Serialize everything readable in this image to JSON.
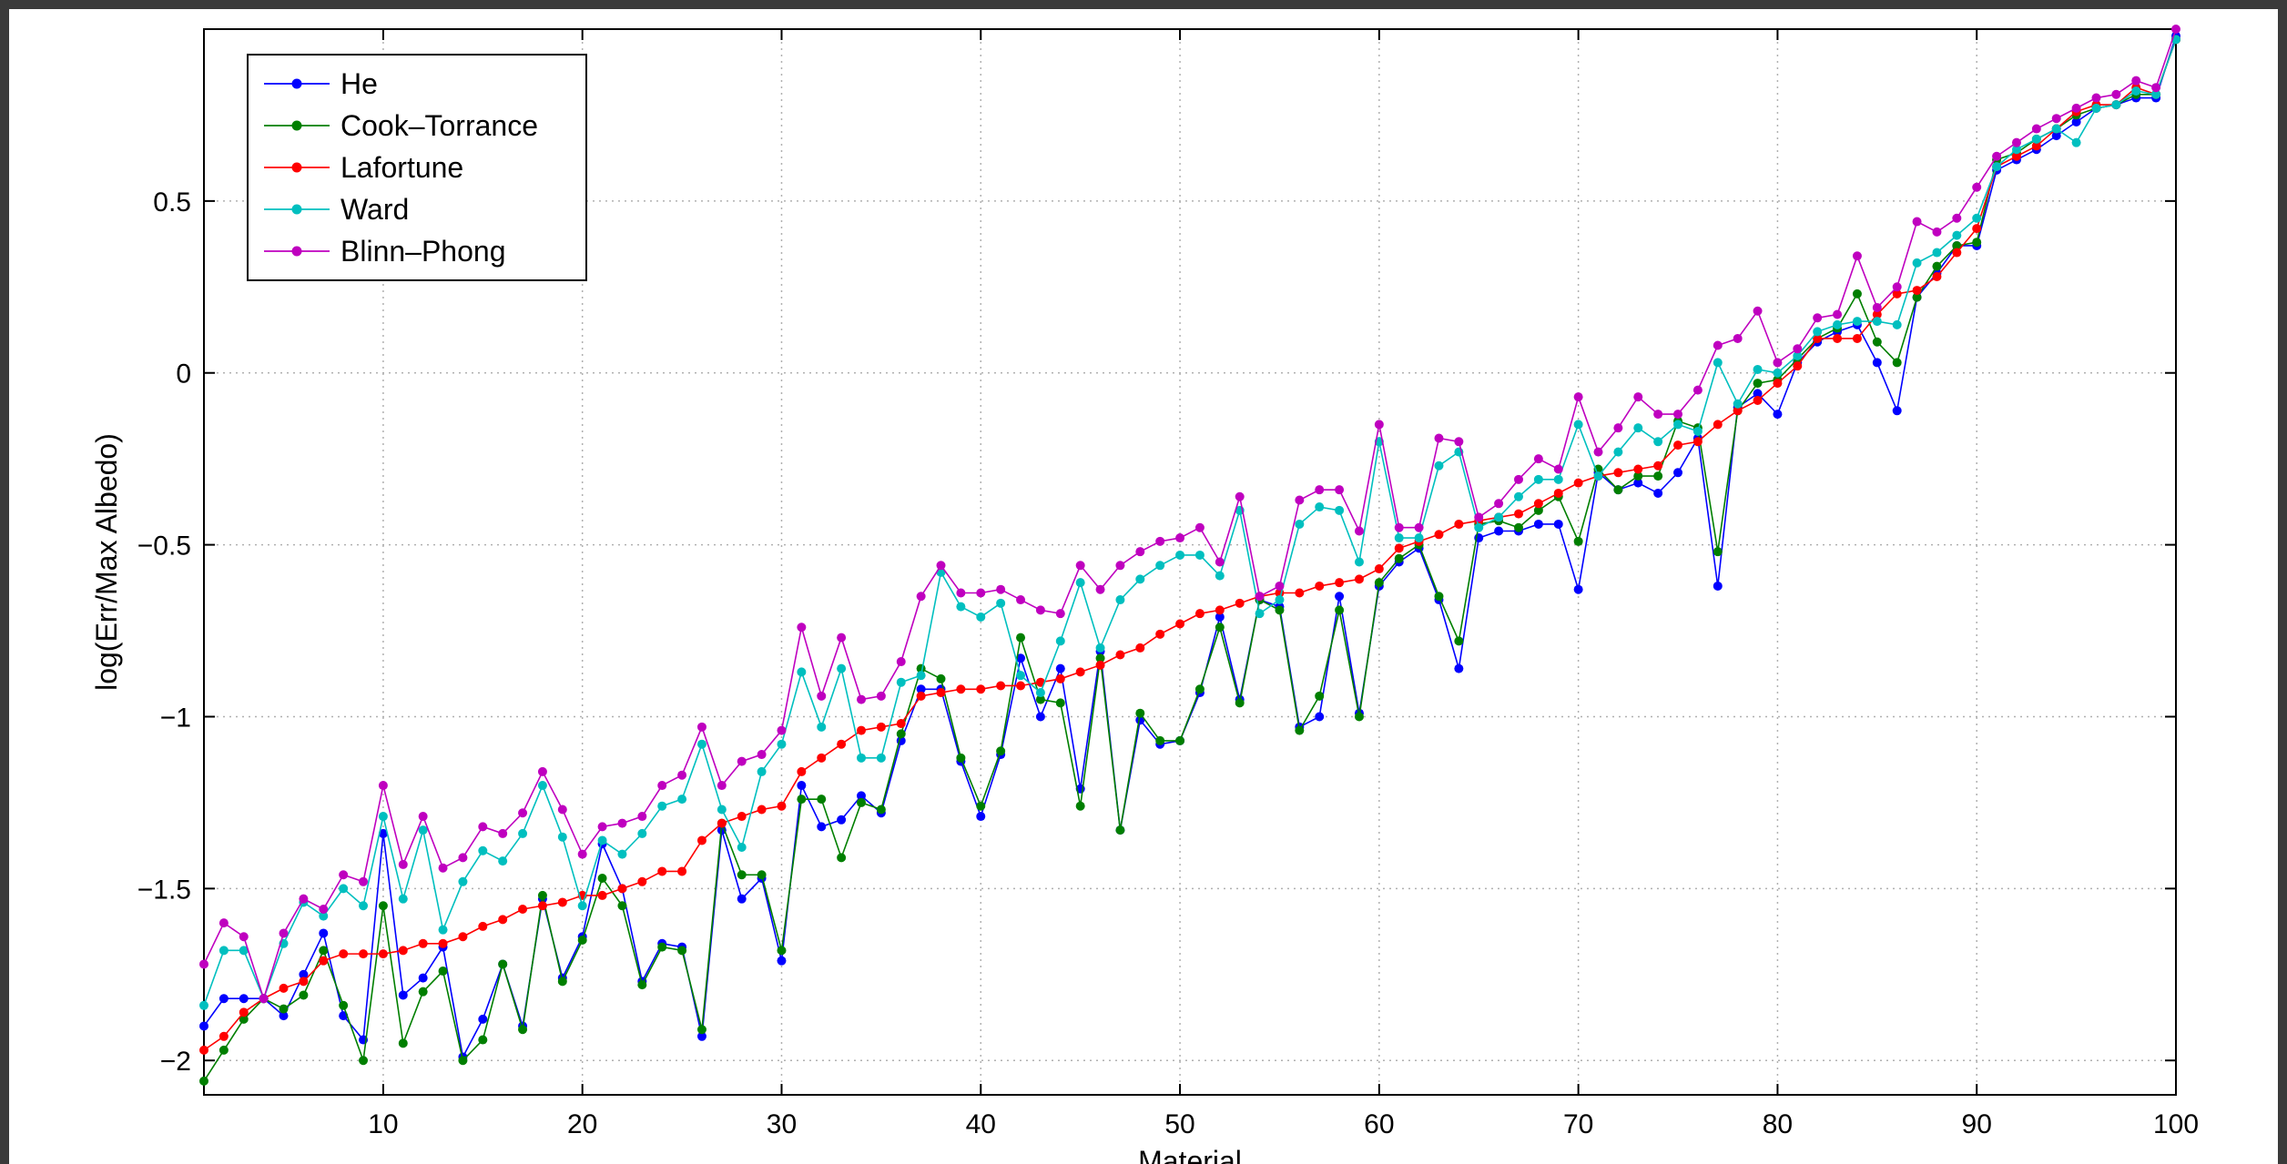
{
  "chart_data": {
    "type": "line",
    "title": "",
    "xlabel": "Material",
    "ylabel": "log(Err/Max Albedo)",
    "xlim": [
      1,
      100
    ],
    "ylim": [
      -2.1,
      1.0
    ],
    "xticks": [
      10,
      20,
      30,
      40,
      50,
      60,
      70,
      80,
      90,
      100
    ],
    "yticks": [
      -2,
      -1.5,
      -1,
      -0.5,
      0,
      0.5
    ],
    "ytick_labels": [
      "−2",
      "−1.5",
      "−1",
      "−0.5",
      "0",
      "0.5"
    ],
    "grid": true,
    "legend_position": "top-left",
    "x": [
      1,
      2,
      3,
      4,
      5,
      6,
      7,
      8,
      9,
      10,
      11,
      12,
      13,
      14,
      15,
      16,
      17,
      18,
      19,
      20,
      21,
      22,
      23,
      24,
      25,
      26,
      27,
      28,
      29,
      30,
      31,
      32,
      33,
      34,
      35,
      36,
      37,
      38,
      39,
      40,
      41,
      42,
      43,
      44,
      45,
      46,
      47,
      48,
      49,
      50,
      51,
      52,
      53,
      54,
      55,
      56,
      57,
      58,
      59,
      60,
      61,
      62,
      63,
      64,
      65,
      66,
      67,
      68,
      69,
      70,
      71,
      72,
      73,
      74,
      75,
      76,
      77,
      78,
      79,
      80,
      81,
      82,
      83,
      84,
      85,
      86,
      87,
      88,
      89,
      90,
      91,
      92,
      93,
      94,
      95,
      96,
      97,
      98,
      99,
      100
    ],
    "series": [
      {
        "name": "He",
        "color": "#0000ff",
        "values": [
          -1.9,
          -1.82,
          -1.82,
          -1.82,
          -1.87,
          -1.75,
          -1.63,
          -1.87,
          -1.94,
          -1.34,
          -1.81,
          -1.76,
          -1.67,
          -1.99,
          -1.88,
          -1.72,
          -1.9,
          -1.53,
          -1.76,
          -1.64,
          -1.37,
          -1.5,
          -1.77,
          -1.66,
          -1.67,
          -1.93,
          -1.33,
          -1.53,
          -1.47,
          -1.71,
          -1.2,
          -1.32,
          -1.3,
          -1.23,
          -1.28,
          -1.07,
          -0.92,
          -0.92,
          -1.13,
          -1.29,
          -1.11,
          -0.83,
          -1.0,
          -0.86,
          -1.21,
          -0.81,
          -1.33,
          -1.01,
          -1.08,
          -1.07,
          -0.93,
          -0.71,
          -0.95,
          -0.66,
          -0.68,
          -1.03,
          -1.0,
          -0.65,
          -0.99,
          -0.62,
          -0.55,
          -0.51,
          -0.66,
          -0.86,
          -0.48,
          -0.46,
          -0.46,
          -0.44,
          -0.44,
          -0.63,
          -0.29,
          -0.34,
          -0.32,
          -0.35,
          -0.29,
          -0.19,
          -0.62,
          -0.1,
          -0.06,
          -0.12,
          0.03,
          0.09,
          0.12,
          0.14,
          0.03,
          -0.11,
          0.22,
          0.29,
          0.37,
          0.37,
          0.59,
          0.62,
          0.65,
          0.69,
          0.73,
          0.77,
          0.78,
          0.8,
          0.8,
          0.98
        ]
      },
      {
        "name": "Cook–Torrance",
        "color": "#007f00",
        "values": [
          -2.06,
          -1.97,
          -1.88,
          -1.82,
          -1.85,
          -1.81,
          -1.68,
          -1.84,
          -2.0,
          -1.55,
          -1.95,
          -1.8,
          -1.74,
          -2.0,
          -1.94,
          -1.72,
          -1.91,
          -1.52,
          -1.77,
          -1.65,
          -1.47,
          -1.55,
          -1.78,
          -1.67,
          -1.68,
          -1.91,
          -1.31,
          -1.46,
          -1.46,
          -1.68,
          -1.24,
          -1.24,
          -1.41,
          -1.25,
          -1.27,
          -1.05,
          -0.86,
          -0.89,
          -1.12,
          -1.26,
          -1.1,
          -0.77,
          -0.95,
          -0.96,
          -1.26,
          -0.83,
          -1.33,
          -0.99,
          -1.07,
          -1.07,
          -0.92,
          -0.74,
          -0.96,
          -0.66,
          -0.69,
          -1.04,
          -0.94,
          -0.69,
          -1.0,
          -0.61,
          -0.54,
          -0.5,
          -0.65,
          -0.78,
          -0.44,
          -0.43,
          -0.45,
          -0.4,
          -0.36,
          -0.49,
          -0.28,
          -0.34,
          -0.3,
          -0.3,
          -0.14,
          -0.16,
          -0.52,
          -0.11,
          -0.03,
          -0.02,
          0.04,
          0.1,
          0.13,
          0.23,
          0.09,
          0.03,
          0.22,
          0.31,
          0.37,
          0.38,
          0.62,
          0.64,
          0.68,
          0.71,
          0.75,
          0.77,
          0.78,
          0.81,
          0.81,
          0.97
        ]
      },
      {
        "name": "Lafortune",
        "color": "#ff0000",
        "values": [
          -1.97,
          -1.93,
          -1.86,
          -1.82,
          -1.79,
          -1.77,
          -1.71,
          -1.69,
          -1.69,
          -1.69,
          -1.68,
          -1.66,
          -1.66,
          -1.64,
          -1.61,
          -1.59,
          -1.56,
          -1.55,
          -1.54,
          -1.52,
          -1.52,
          -1.5,
          -1.48,
          -1.45,
          -1.45,
          -1.36,
          -1.31,
          -1.29,
          -1.27,
          -1.26,
          -1.16,
          -1.12,
          -1.08,
          -1.04,
          -1.03,
          -1.02,
          -0.94,
          -0.93,
          -0.92,
          -0.92,
          -0.91,
          -0.91,
          -0.9,
          -0.89,
          -0.87,
          -0.85,
          -0.82,
          -0.8,
          -0.76,
          -0.73,
          -0.7,
          -0.69,
          -0.67,
          -0.65,
          -0.64,
          -0.64,
          -0.62,
          -0.61,
          -0.6,
          -0.57,
          -0.51,
          -0.49,
          -0.47,
          -0.44,
          -0.43,
          -0.42,
          -0.41,
          -0.38,
          -0.35,
          -0.32,
          -0.3,
          -0.29,
          -0.28,
          -0.27,
          -0.21,
          -0.2,
          -0.15,
          -0.11,
          -0.08,
          -0.03,
          0.02,
          0.1,
          0.1,
          0.1,
          0.17,
          0.23,
          0.24,
          0.28,
          0.35,
          0.42,
          0.6,
          0.63,
          0.66,
          0.71,
          0.76,
          0.78,
          0.78,
          0.83,
          0.81,
          0.97
        ]
      },
      {
        "name": "Ward",
        "color": "#00bfbf",
        "values": [
          -1.84,
          -1.68,
          -1.68,
          -1.82,
          -1.66,
          -1.54,
          -1.58,
          -1.5,
          -1.55,
          -1.29,
          -1.53,
          -1.33,
          -1.62,
          -1.48,
          -1.39,
          -1.42,
          -1.34,
          -1.2,
          -1.35,
          -1.55,
          -1.36,
          -1.4,
          -1.34,
          -1.26,
          -1.24,
          -1.08,
          -1.27,
          -1.38,
          -1.16,
          -1.08,
          -0.87,
          -1.03,
          -0.86,
          -1.12,
          -1.12,
          -0.9,
          -0.88,
          -0.58,
          -0.68,
          -0.71,
          -0.67,
          -0.88,
          -0.93,
          -0.78,
          -0.61,
          -0.8,
          -0.66,
          -0.6,
          -0.56,
          -0.53,
          -0.53,
          -0.59,
          -0.4,
          -0.7,
          -0.66,
          -0.44,
          -0.39,
          -0.4,
          -0.55,
          -0.2,
          -0.48,
          -0.48,
          -0.27,
          -0.23,
          -0.45,
          -0.42,
          -0.36,
          -0.31,
          -0.31,
          -0.15,
          -0.3,
          -0.23,
          -0.16,
          -0.2,
          -0.15,
          -0.17,
          0.03,
          -0.09,
          0.01,
          0.0,
          0.05,
          0.12,
          0.14,
          0.15,
          0.15,
          0.14,
          0.32,
          0.35,
          0.4,
          0.45,
          0.6,
          0.65,
          0.68,
          0.71,
          0.67,
          0.77,
          0.78,
          0.82,
          0.81,
          0.97
        ]
      },
      {
        "name": "Blinn–Phong",
        "color": "#bf00bf",
        "values": [
          -1.72,
          -1.6,
          -1.64,
          -1.82,
          -1.63,
          -1.53,
          -1.56,
          -1.46,
          -1.48,
          -1.2,
          -1.43,
          -1.29,
          -1.44,
          -1.41,
          -1.32,
          -1.34,
          -1.28,
          -1.16,
          -1.27,
          -1.4,
          -1.32,
          -1.31,
          -1.29,
          -1.2,
          -1.17,
          -1.03,
          -1.2,
          -1.13,
          -1.11,
          -1.04,
          -0.74,
          -0.94,
          -0.77,
          -0.95,
          -0.94,
          -0.84,
          -0.65,
          -0.56,
          -0.64,
          -0.64,
          -0.63,
          -0.66,
          -0.69,
          -0.7,
          -0.56,
          -0.63,
          -0.56,
          -0.52,
          -0.49,
          -0.48,
          -0.45,
          -0.55,
          -0.36,
          -0.65,
          -0.62,
          -0.37,
          -0.34,
          -0.34,
          -0.46,
          -0.15,
          -0.45,
          -0.45,
          -0.19,
          -0.2,
          -0.42,
          -0.38,
          -0.31,
          -0.25,
          -0.28,
          -0.07,
          -0.23,
          -0.16,
          -0.07,
          -0.12,
          -0.12,
          -0.05,
          0.08,
          0.1,
          0.18,
          0.03,
          0.07,
          0.16,
          0.17,
          0.34,
          0.19,
          0.25,
          0.44,
          0.41,
          0.45,
          0.54,
          0.63,
          0.67,
          0.71,
          0.74,
          0.77,
          0.8,
          0.81,
          0.85,
          0.83,
          1.0
        ]
      }
    ]
  }
}
